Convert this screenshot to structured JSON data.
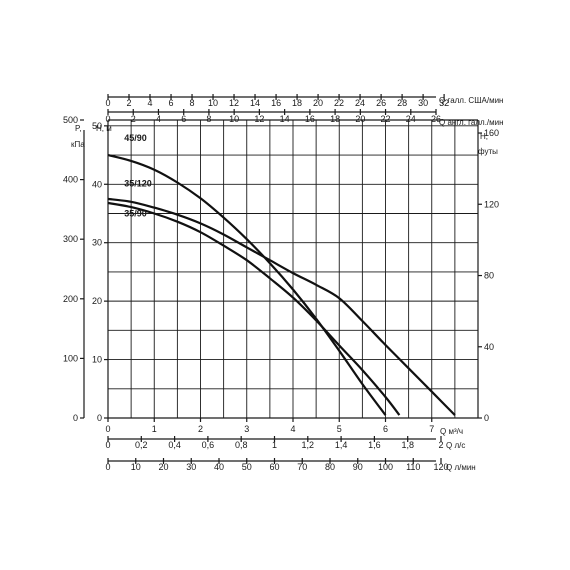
{
  "chart_data": {
    "type": "line",
    "xlabel": "Q м³/ч",
    "ylabel": "Н, м",
    "xlim": [
      0,
      8
    ],
    "ylim": [
      0,
      50
    ],
    "x_ticks": [
      "0",
      "1",
      "2",
      "3",
      "4",
      "5",
      "6",
      "7"
    ],
    "y_ticks": [
      "0",
      "10",
      "20",
      "30",
      "40",
      "50"
    ],
    "left_pressure_axis": {
      "label_line1": "P,",
      "label_line2": "кПа",
      "ticks": [
        {
          "label": "0",
          "h": 0
        },
        {
          "label": "100",
          "h": 10.2
        },
        {
          "label": "200",
          "h": 20.4
        },
        {
          "label": "300",
          "h": 30.6
        },
        {
          "label": "400",
          "h": 40.8
        },
        {
          "label": "500",
          "h": 51
        }
      ]
    },
    "right_feet_axis": {
      "label_line1": "Н,",
      "label_line2": "футы",
      "ticks": [
        {
          "label": "0",
          "h": 0
        },
        {
          "label": "40",
          "h": 12.19
        },
        {
          "label": "80",
          "h": 24.38
        },
        {
          "label": "120",
          "h": 36.58
        },
        {
          "label": "160",
          "h": 48.77
        }
      ]
    },
    "extra_x_axes": [
      {
        "name": "us-gallons",
        "label": "Q галл. США/мин",
        "position": "top",
        "ticks": [
          {
            "label": "0",
            "q": 0
          },
          {
            "label": "2",
            "q": 0.454
          },
          {
            "label": "4",
            "q": 0.908
          },
          {
            "label": "6",
            "q": 1.363
          },
          {
            "label": "8",
            "q": 1.817
          },
          {
            "label": "10",
            "q": 2.271
          },
          {
            "label": "12",
            "q": 2.725
          },
          {
            "label": "14",
            "q": 3.179
          },
          {
            "label": "16",
            "q": 3.634
          },
          {
            "label": "18",
            "q": 4.088
          },
          {
            "label": "20",
            "q": 4.542
          },
          {
            "label": "22",
            "q": 4.996
          },
          {
            "label": "24",
            "q": 5.45
          },
          {
            "label": "26",
            "q": 5.905
          },
          {
            "label": "28",
            "q": 6.359
          },
          {
            "label": "30",
            "q": 6.813
          },
          {
            "label": "32",
            "q": 7.267
          }
        ]
      },
      {
        "name": "imperial-gallons",
        "label": "Q англ. галл./мин",
        "position": "top",
        "ticks": [
          {
            "label": "0",
            "q": 0
          },
          {
            "label": "2",
            "q": 0.546
          },
          {
            "label": "4",
            "q": 1.091
          },
          {
            "label": "6",
            "q": 1.637
          },
          {
            "label": "8",
            "q": 2.182
          },
          {
            "label": "10",
            "q": 2.728
          },
          {
            "label": "12",
            "q": 3.273
          },
          {
            "label": "14",
            "q": 3.819
          },
          {
            "label": "16",
            "q": 4.365
          },
          {
            "label": "18",
            "q": 4.91
          },
          {
            "label": "20",
            "q": 5.456
          },
          {
            "label": "22",
            "q": 6.001
          },
          {
            "label": "24",
            "q": 6.547
          },
          {
            "label": "26",
            "q": 7.092
          }
        ]
      },
      {
        "name": "litres-per-second",
        "label": "Q л/с",
        "position": "bottom",
        "ticks": [
          {
            "label": "0",
            "q": 0
          },
          {
            "label": "0,2",
            "q": 0.72
          },
          {
            "label": "0,4",
            "q": 1.44
          },
          {
            "label": "0,6",
            "q": 2.16
          },
          {
            "label": "0,8",
            "q": 2.88
          },
          {
            "label": "1",
            "q": 3.6
          },
          {
            "label": "1,2",
            "q": 4.32
          },
          {
            "label": "1,4",
            "q": 5.04
          },
          {
            "label": "1,6",
            "q": 5.76
          },
          {
            "label": "1,8",
            "q": 6.48
          },
          {
            "label": "2",
            "q": 7.2
          }
        ]
      },
      {
        "name": "litres-per-minute",
        "label": "Q л/мин",
        "position": "bottom",
        "ticks": [
          {
            "label": "0",
            "q": 0
          },
          {
            "label": "10",
            "q": 0.6
          },
          {
            "label": "20",
            "q": 1.2
          },
          {
            "label": "30",
            "q": 1.8
          },
          {
            "label": "40",
            "q": 2.4
          },
          {
            "label": "50",
            "q": 3.0
          },
          {
            "label": "60",
            "q": 3.6
          },
          {
            "label": "70",
            "q": 4.2
          },
          {
            "label": "80",
            "q": 4.8
          },
          {
            "label": "90",
            "q": 5.4
          },
          {
            "label": "100",
            "q": 6.0
          },
          {
            "label": "110",
            "q": 6.6
          },
          {
            "label": "120",
            "q": 7.2
          }
        ]
      }
    ],
    "series": [
      {
        "name": "45/90",
        "label_at": {
          "x": 0.35,
          "y": 47.4
        },
        "x": [
          0,
          0.5,
          1,
          1.5,
          2,
          2.5,
          3,
          3.5,
          4,
          4.5,
          5,
          5.5,
          6.0
        ],
        "y": [
          45,
          44,
          42.5,
          40.3,
          37.6,
          34.3,
          30.6,
          26.5,
          22,
          17,
          11.5,
          5.8,
          0.5
        ]
      },
      {
        "name": "35/120",
        "label_at": {
          "x": 0.35,
          "y": 39.6
        },
        "x": [
          0,
          0.5,
          1,
          1.5,
          2,
          2.5,
          3,
          3.5,
          4,
          4.5,
          5,
          5.5,
          6,
          6.5,
          7,
          7.5
        ],
        "y": [
          37.5,
          37,
          36,
          34.8,
          33.3,
          31.4,
          29.2,
          27,
          24.8,
          22.8,
          20.5,
          16.6,
          12.5,
          8.5,
          4.5,
          0.5
        ]
      },
      {
        "name": "35/90",
        "label_at": {
          "x": 0.35,
          "y": 34.5
        },
        "x": [
          0,
          0.5,
          1,
          1.5,
          2,
          2.5,
          3,
          3.5,
          4,
          4.5,
          5,
          5.5,
          6,
          6.3
        ],
        "y": [
          36.8,
          36.1,
          35,
          33.6,
          31.8,
          29.5,
          27,
          23.9,
          20.6,
          16.7,
          12.4,
          8.2,
          3.6,
          0.5
        ]
      }
    ]
  }
}
